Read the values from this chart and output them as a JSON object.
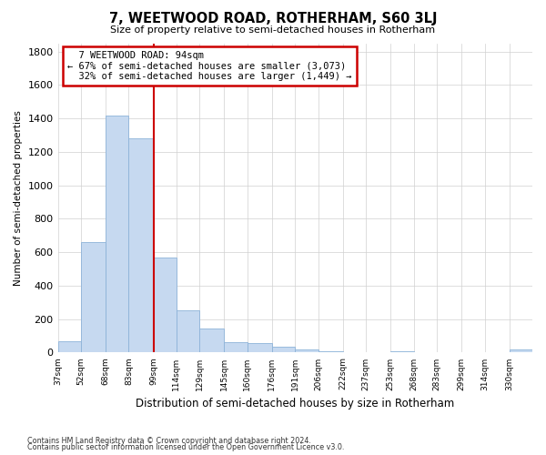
{
  "title": "7, WEETWOOD ROAD, ROTHERHAM, S60 3LJ",
  "subtitle": "Size of property relative to semi-detached houses in Rotherham",
  "xlabel": "Distribution of semi-detached houses by size in Rotherham",
  "ylabel": "Number of semi-detached properties",
  "footnote1": "Contains HM Land Registry data © Crown copyright and database right 2024.",
  "footnote2": "Contains public sector information licensed under the Open Government Licence v3.0.",
  "property_label": "7 WEETWOOD ROAD: 94sqm",
  "pct_smaller": 67,
  "n_smaller": 3073,
  "pct_larger": 32,
  "n_larger": 1449,
  "bin_edges": [
    37,
    52,
    68,
    83,
    99,
    114,
    129,
    145,
    160,
    176,
    191,
    206,
    222,
    237,
    253,
    268,
    283,
    299,
    314,
    330,
    345
  ],
  "bar_heights": [
    65,
    660,
    1420,
    1280,
    570,
    255,
    145,
    60,
    55,
    35,
    20,
    10,
    5,
    3,
    10,
    2,
    1,
    0,
    0,
    18
  ],
  "bar_color": "#c6d9f0",
  "bar_edge_color": "#8db3d9",
  "vline_color": "#cc0000",
  "vline_x": 99,
  "annotation_box_edge": "#cc0000",
  "grid_color": "#d0d0d0",
  "background_color": "#ffffff",
  "ylim": [
    0,
    1850
  ],
  "yticks": [
    0,
    200,
    400,
    600,
    800,
    1000,
    1200,
    1400,
    1600,
    1800
  ]
}
